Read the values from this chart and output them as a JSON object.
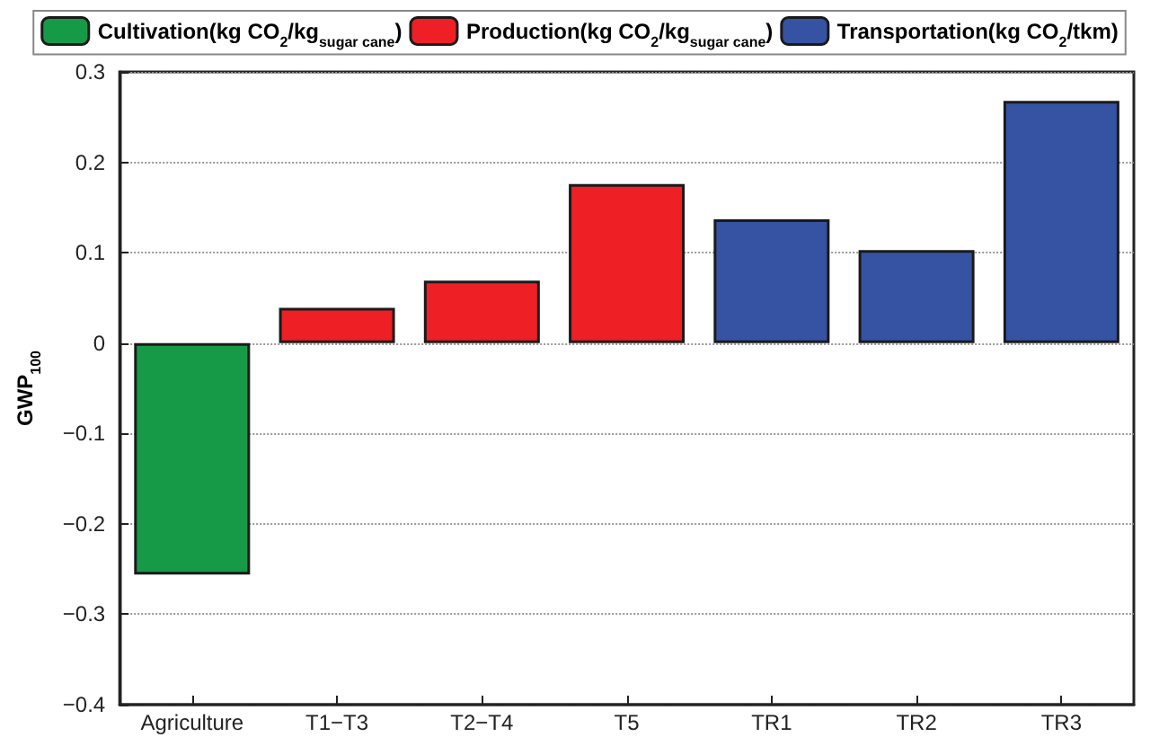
{
  "chart_data": {
    "type": "bar",
    "ylabel": "GWP$_{100}$",
    "categories": [
      "Agriculture",
      "T1−T3",
      "T2−T4",
      "T5",
      "TR1",
      "TR2",
      "TR3"
    ],
    "series": [
      {
        "name": "Cultivation(kg CO$_{2}$/kg$_{sugar cane}$)",
        "color": "#169a48",
        "values": [
          -0.256,
          null,
          null,
          null,
          null,
          null,
          null
        ]
      },
      {
        "name": "Production(kg CO$_{2}$/kg$_{sugar cane}$)",
        "color": "#ee1f25",
        "values": [
          null,
          0.039,
          0.069,
          0.176,
          null,
          null,
          null
        ]
      },
      {
        "name": "Transportation(kg CO$_{2}$/tkm)",
        "color": "#3652a3",
        "values": [
          null,
          null,
          null,
          null,
          0.137,
          0.103,
          0.268
        ]
      }
    ],
    "ylim": [
      -0.4,
      0.3
    ],
    "yticks": [
      -0.4,
      -0.3,
      -0.2,
      -0.1,
      0,
      0.1,
      0.2,
      0.3
    ],
    "grid": "y",
    "legend": "top"
  }
}
